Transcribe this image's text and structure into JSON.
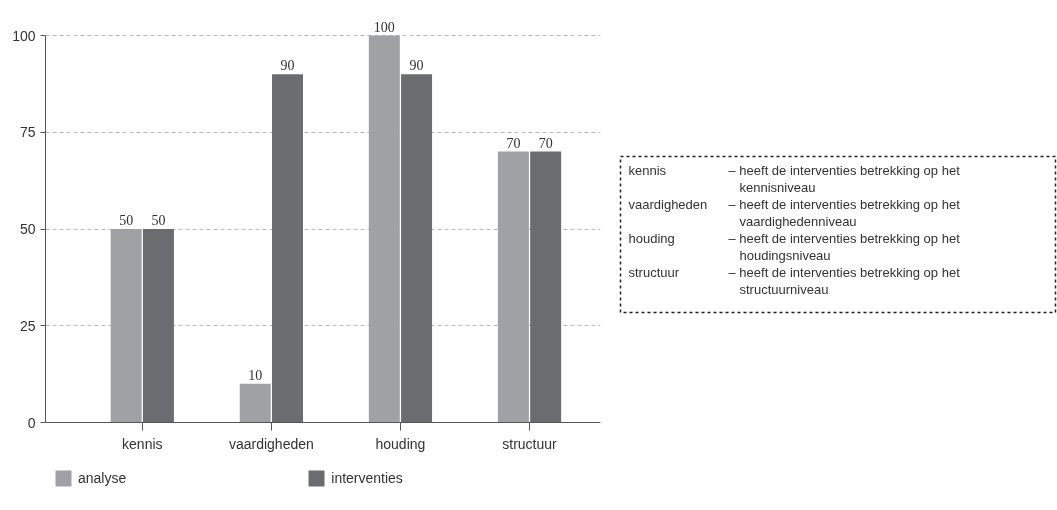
{
  "chart_data": {
    "type": "bar",
    "categories": [
      "kennis",
      "vaardigheden",
      "houding",
      "structuur"
    ],
    "series": [
      {
        "name": "analyse",
        "color": "#a0a1a5",
        "values": [
          50,
          10,
          100,
          70
        ]
      },
      {
        "name": "interventies",
        "color": "#6b6c70",
        "values": [
          50,
          90,
          90,
          70
        ]
      }
    ],
    "ylim": [
      0,
      100
    ],
    "yticks": [
      0,
      25,
      50,
      75,
      100
    ],
    "grid": "y",
    "legend": "bottom",
    "data_labels": true,
    "annotations": [
      "kennis",
      "– heeft de interventies betrekking op het kennisniveau",
      "vaardigheden",
      "– heeft de interventies betrekking op het vaardighedenniveau",
      "houding",
      "– heeft de interventies betrekking op het houdingsniveau",
      "structuur",
      "– heeft de interventies betrekking op het structuurniveau"
    ]
  }
}
